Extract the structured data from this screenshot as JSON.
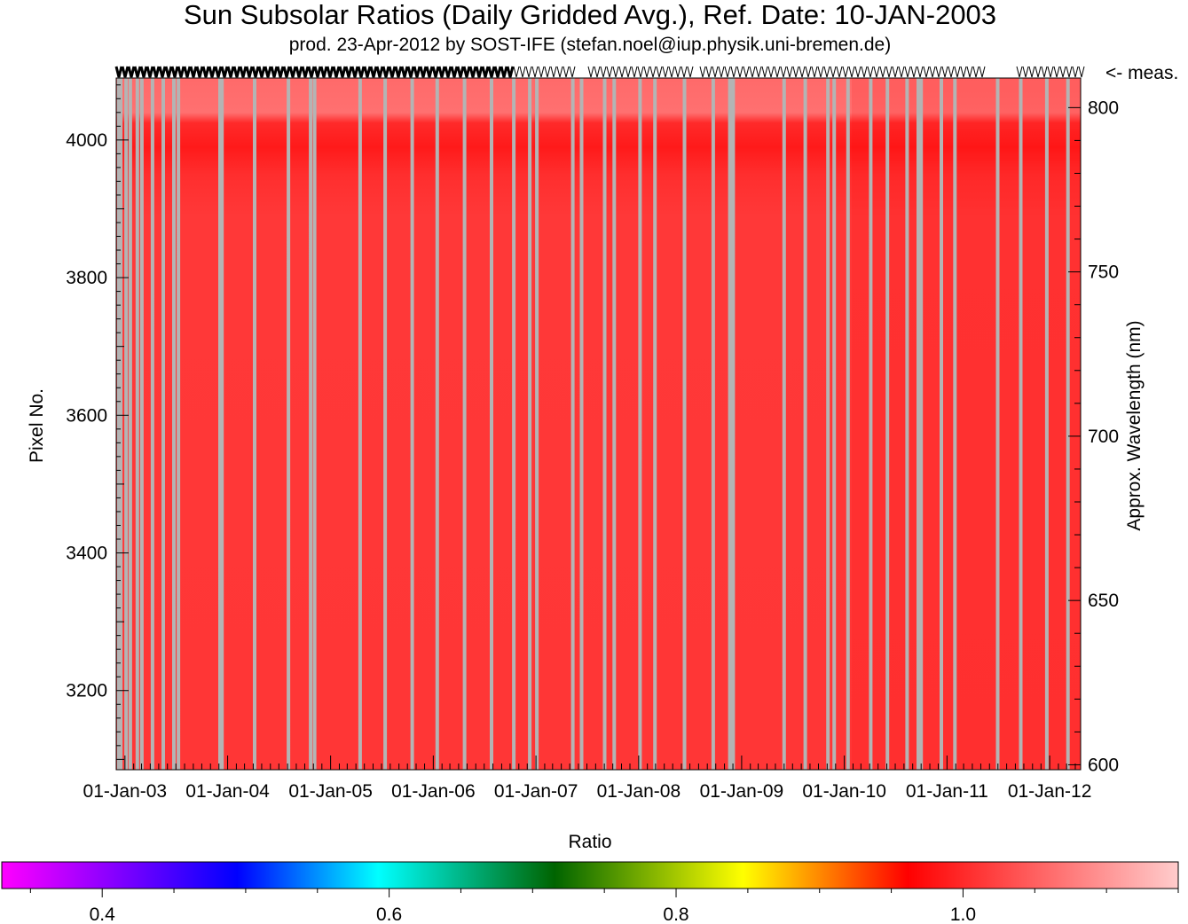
{
  "chart_data": {
    "type": "heatmap",
    "title": "Sun Subsolar Ratios (Daily Gridded Avg.), Ref. Date: 10-JAN-2003",
    "subtitle": "prod. 23-Apr-2012 by SOST-IFE (stefan.noel@iup.physik.uni-bremen.de)",
    "ylabel": "Pixel No.",
    "y2label": "Approx. Wavelength (nm)",
    "meas_label": "<- meas.",
    "x_ticks": [
      "01-Jan-03",
      "01-Jan-04",
      "01-Jan-05",
      "01-Jan-06",
      "01-Jan-07",
      "01-Jan-08",
      "01-Jan-09",
      "01-Jan-10",
      "01-Jan-11",
      "01-Jan-12"
    ],
    "xlim": [
      "2002-12-01",
      "2012-04-20"
    ],
    "y_ticks": [
      3200,
      3400,
      3600,
      3800,
      4000
    ],
    "ylim": [
      3085,
      4090
    ],
    "y2_ticks": [
      600,
      650,
      700,
      750,
      800
    ],
    "y2lim": [
      598.5,
      809
    ],
    "colorbar": {
      "label": "Ratio",
      "ticks": [
        0.4,
        0.6,
        0.8,
        1.0
      ],
      "tick_labels": [
        "0.4",
        "0.6",
        "0.8",
        "1.0"
      ],
      "range": [
        0.33,
        1.15
      ]
    },
    "data_gaps": [
      "2002-12-10",
      "2002-12-17",
      "2003-01-05",
      "2003-01-20",
      "2003-02-14",
      "2003-03-02",
      "2003-04-09",
      "2003-05-17",
      "2003-06-24",
      "2003-07-10",
      "2003-12-05",
      "2003-12-12",
      "2004-04-06",
      "2004-08-04",
      "2004-10-22",
      "2004-11-05",
      "2005-04-16",
      "2005-07-14",
      "2005-10-18",
      "2006-01-15",
      "2006-04-22",
      "2006-07-27",
      "2006-10-14",
      "2006-12-10",
      "2007-01-04",
      "2007-05-12",
      "2007-06-12",
      "2007-09-02",
      "2007-10-06",
      "2008-01-06",
      "2008-02-28",
      "2008-06-12",
      "2008-09-22",
      "2008-11-20",
      "2008-12-02",
      "2009-06-01",
      "2009-08-15",
      "2009-11-04",
      "2009-11-26",
      "2010-01-14",
      "2010-04-05",
      "2010-06-03",
      "2010-08-12",
      "2010-09-21",
      "2010-10-01",
      "2010-12-12",
      "2011-01-29",
      "2011-06-30",
      "2011-09-20",
      "2011-12-22",
      "2012-03-06"
    ]
  }
}
